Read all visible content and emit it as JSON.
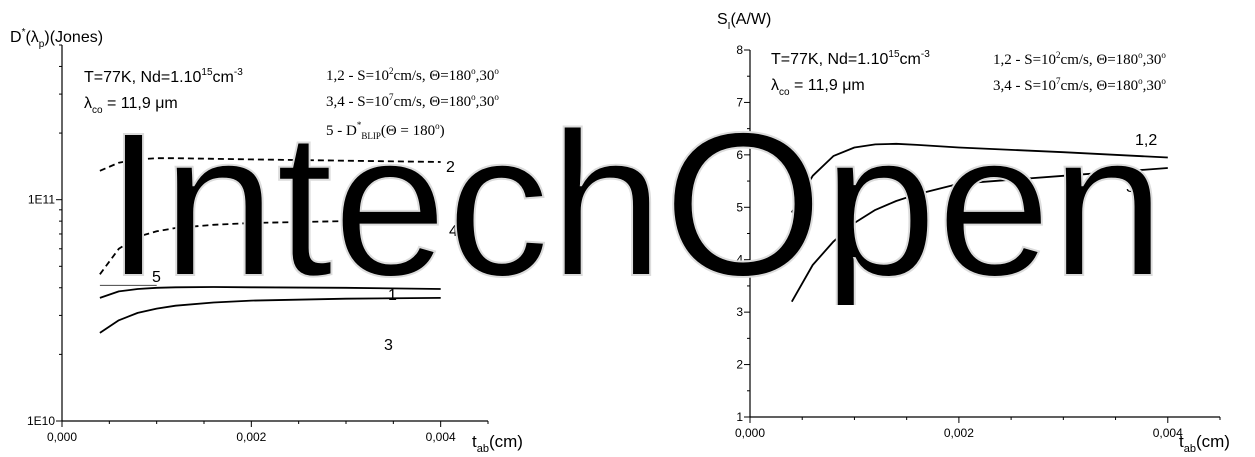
{
  "chart_data": [
    {
      "type": "line",
      "y_scale": "log",
      "ylabel": "D*(λp)(Jones)",
      "ylabel_parts": {
        "main": "D",
        "sup": "*",
        "paren_open": "(λ",
        "sub": "p",
        "rest": ")(Jones)"
      },
      "xlabel": "tab(cm)",
      "xlabel_parts": {
        "main": "t",
        "sub": "ab",
        "rest": "(cm)"
      },
      "xlim": [
        0.0,
        0.0045
      ],
      "ylim": [
        10000000000.0,
        500000000000.0
      ],
      "x_ticks": [
        {
          "v": 0.0,
          "label": "0,000"
        },
        {
          "v": 0.002,
          "label": "0,002"
        },
        {
          "v": 0.004,
          "label": "0,004"
        }
      ],
      "y_ticks": [
        {
          "v": 10000000000.0,
          "label": "1E10"
        },
        {
          "v": 100000000000.0,
          "label": "1E11"
        }
      ],
      "annotations": {
        "cond_a": "T=77K, Nd=1.10",
        "cond_a_sup": "15",
        "cond_a_unit": "cm",
        "cond_a_unit_sup": "-3",
        "cond_b_pre": "λ",
        "cond_b_sub": "co",
        "cond_b": " = 11,9 μm",
        "legend_1a": "1,2 - S=10",
        "legend_1sup": "2",
        "legend_1b": "cm/s, Θ=180",
        "legend_1c": "o",
        "legend_1d": ",30",
        "legend_1e": "o",
        "legend_2a": "3,4 - S=10",
        "legend_2sup": "7",
        "legend_2b": "cm/s, Θ=180",
        "legend_2c": "o",
        "legend_2d": ",30",
        "legend_2e": "o",
        "legend_3a": "5 - D",
        "legend_3sup": "*",
        "legend_3sub": "BLIP",
        "legend_3b": "(Θ = 180",
        "legend_3c": "o",
        "legend_3d": ")"
      },
      "series": [
        {
          "label": "1",
          "style": "solid",
          "x": [
            0.0004,
            0.0006,
            0.0008,
            0.001,
            0.0012,
            0.0016,
            0.002,
            0.003,
            0.004
          ],
          "y": [
            36000000000.0,
            38500000000.0,
            39500000000.0,
            40000000000.0,
            40200000000.0,
            40300000000.0,
            40200000000.0,
            40000000000.0,
            39500000000.0
          ]
        },
        {
          "label": "2",
          "style": "dashed",
          "x": [
            0.0004,
            0.0006,
            0.0008,
            0.001,
            0.0012,
            0.0016,
            0.002,
            0.003,
            0.004
          ],
          "y": [
            135000000000.0,
            147000000000.0,
            152000000000.0,
            154000000000.0,
            154000000000.0,
            153000000000.0,
            152000000000.0,
            150000000000.0,
            148000000000.0
          ]
        },
        {
          "label": "3",
          "style": "solid",
          "x": [
            0.0004,
            0.0006,
            0.0008,
            0.001,
            0.0012,
            0.0016,
            0.002,
            0.003,
            0.004
          ],
          "y": [
            25000000000.0,
            28500000000.0,
            30800000000.0,
            32200000000.0,
            33200000000.0,
            34300000000.0,
            35000000000.0,
            35700000000.0,
            36000000000.0
          ]
        },
        {
          "label": "4",
          "style": "dashed",
          "x": [
            0.0004,
            0.0006,
            0.0008,
            0.001,
            0.0012,
            0.0016,
            0.002,
            0.003,
            0.004
          ],
          "y": [
            46000000000.0,
            60000000000.0,
            68000000000.0,
            72000000000.0,
            74500000000.0,
            77000000000.0,
            78500000000.0,
            80000000000.0,
            81000000000.0
          ]
        },
        {
          "label": "5",
          "style": "thin",
          "x": [
            0.0004,
            0.001
          ],
          "y": [
            41000000000.0,
            41000000000.0
          ]
        }
      ]
    },
    {
      "type": "line",
      "y_scale": "linear",
      "ylabel": "SI(A/W)",
      "ylabel_parts": {
        "main": "S",
        "sub": "I",
        "rest": "(A/W)"
      },
      "xlabel": "tab(cm)",
      "xlabel_parts": {
        "main": "t",
        "sub": "ab",
        "rest": "(cm)"
      },
      "xlim": [
        0.0,
        0.0045
      ],
      "ylim": [
        1,
        8
      ],
      "x_ticks": [
        {
          "v": 0.0,
          "label": "0,000"
        },
        {
          "v": 0.002,
          "label": "0,002"
        },
        {
          "v": 0.004,
          "label": "0,004"
        }
      ],
      "y_ticks": [
        {
          "v": 1,
          "label": "1"
        },
        {
          "v": 2,
          "label": "2"
        },
        {
          "v": 3,
          "label": "3"
        },
        {
          "v": 4,
          "label": "4"
        },
        {
          "v": 5,
          "label": "5"
        },
        {
          "v": 6,
          "label": "6"
        },
        {
          "v": 7,
          "label": "7"
        },
        {
          "v": 8,
          "label": "8"
        }
      ],
      "annotations": {
        "cond_a": "T=77K, Nd=1.10",
        "cond_a_sup": "15",
        "cond_a_unit": "cm",
        "cond_a_unit_sup": "-3",
        "cond_b_pre": "λ",
        "cond_b_sub": "co",
        "cond_b": " = 11,9 μm",
        "legend_1a": "1,2 - S=10",
        "legend_1sup": "2",
        "legend_1b": "cm/s, Θ=180",
        "legend_1c": "o",
        "legend_1d": ",30",
        "legend_1e": "o",
        "legend_2a": "3,4 - S=10",
        "legend_2sup": "7",
        "legend_2b": "cm/s, Θ=180",
        "legend_2c": "o",
        "legend_2d": ",30",
        "legend_2e": "o"
      },
      "series": [
        {
          "label": "1,2",
          "style": "solid",
          "x": [
            0.0004,
            0.0006,
            0.0008,
            0.001,
            0.0012,
            0.0014,
            0.0016,
            0.002,
            0.003,
            0.004
          ],
          "y": [
            4.9,
            5.6,
            5.98,
            6.14,
            6.2,
            6.21,
            6.19,
            6.14,
            6.05,
            5.95
          ]
        },
        {
          "label": "3,4",
          "style": "solid",
          "x": [
            0.0004,
            0.0006,
            0.0008,
            0.001,
            0.0012,
            0.0014,
            0.0016,
            0.002,
            0.003,
            0.004
          ],
          "y": [
            3.2,
            3.9,
            4.35,
            4.7,
            4.95,
            5.12,
            5.25,
            5.45,
            5.6,
            5.75
          ]
        }
      ]
    }
  ],
  "watermark": {
    "text": "IntechOpen"
  }
}
